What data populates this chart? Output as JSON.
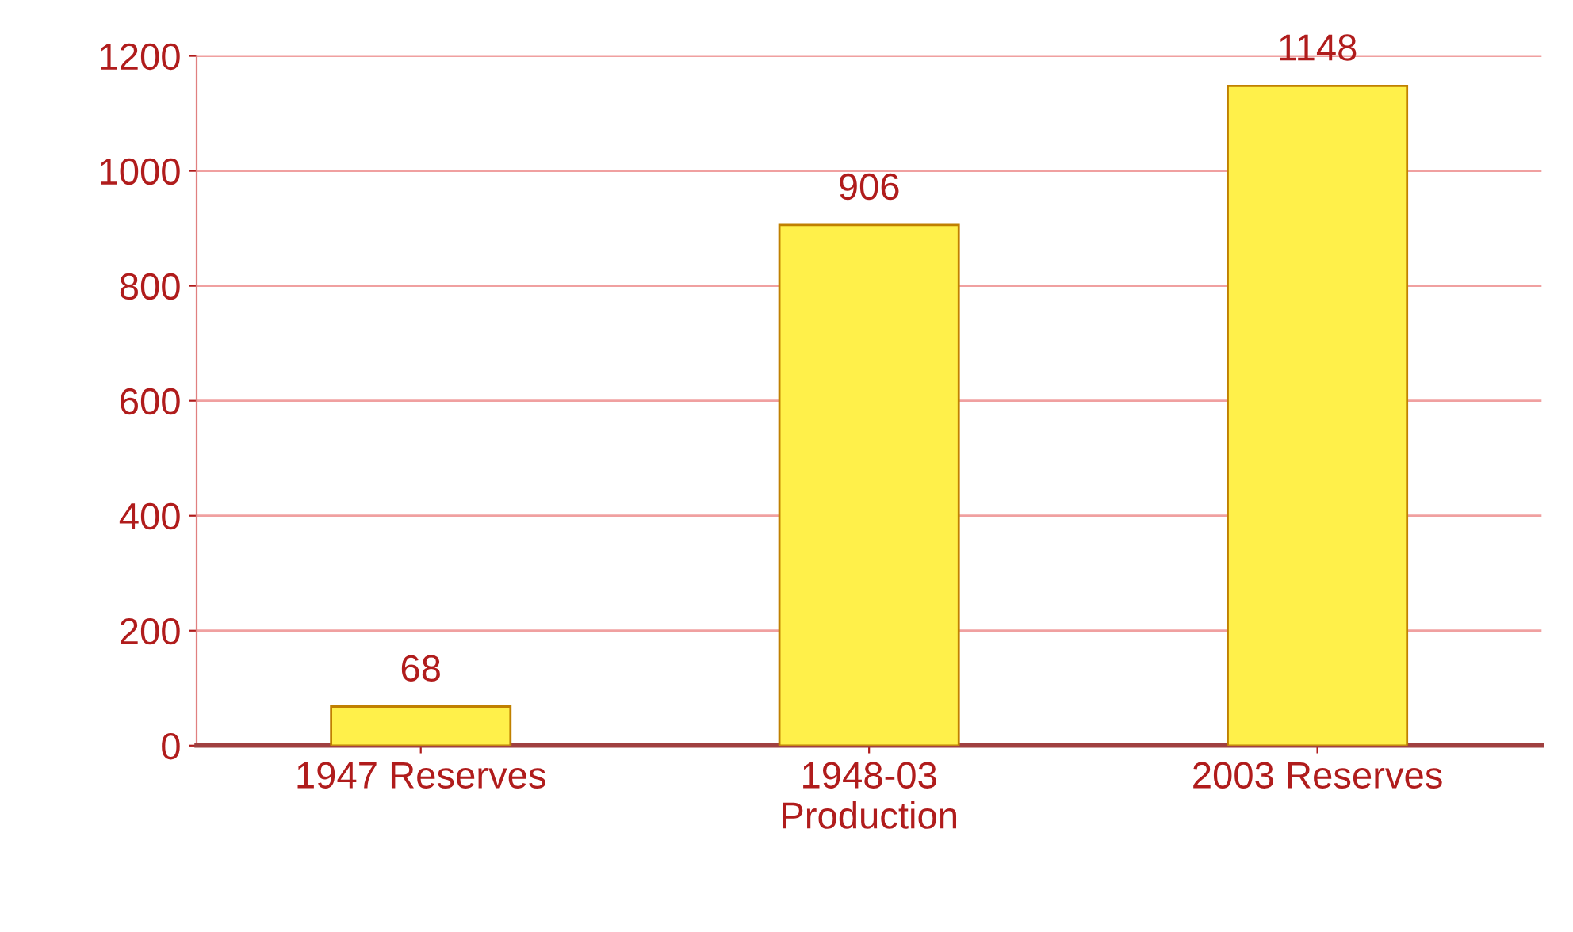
{
  "chart_data": {
    "type": "bar",
    "categories": [
      "1947 Reserves",
      "1948-03\nProduction",
      "2003 Reserves"
    ],
    "values": [
      68,
      906,
      1148
    ],
    "color": "#fff04a",
    "ylim": [
      0,
      1200
    ],
    "yticks": [
      0,
      200,
      400,
      600,
      800,
      1000,
      1200
    ],
    "grid": "y",
    "data_labels": true
  }
}
